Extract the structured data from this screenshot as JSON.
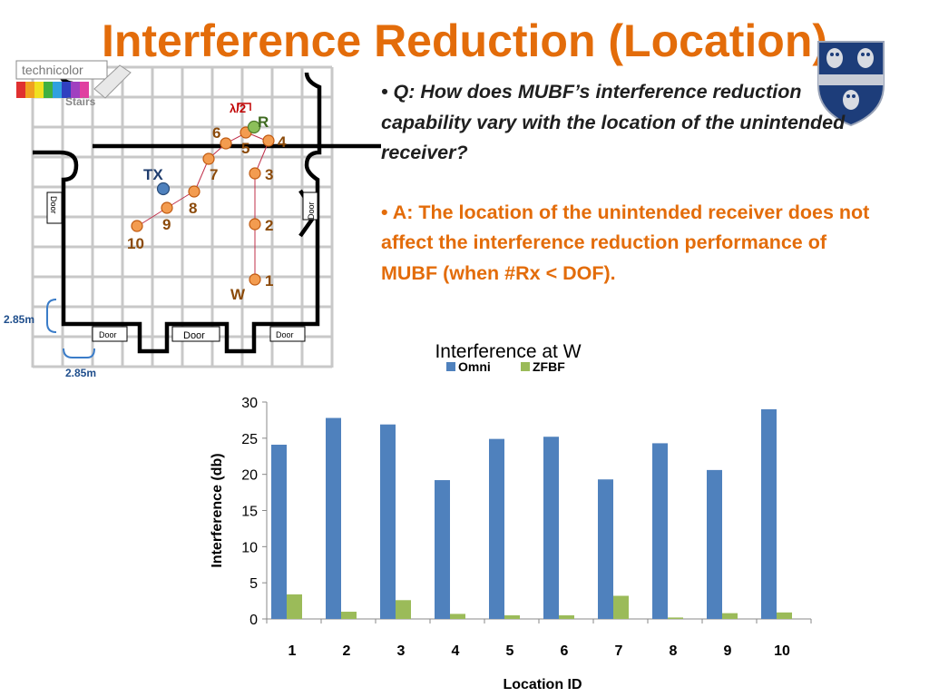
{
  "slide": {
    "title": "Interference Reduction (Location)",
    "question": "• Q: How does MUBF’s interference reduction capability vary with the location of the unintended receiver?",
    "answer": "• A: The location of the unintended receiver does not affect the interference reduction performance of MUBF (when #Rx < DOF).",
    "colors": {
      "title": "#e36c0a",
      "answer": "#e36c0a",
      "question": "#1f1f1f"
    }
  },
  "logo": {
    "text": "technicolor",
    "icon": "technicolor-logo"
  },
  "crest": {
    "icon": "rice-university-crest"
  },
  "floorplan": {
    "stairs_label": "Stairs",
    "door_labels": [
      "Door",
      "Door",
      "Door",
      "Door",
      "Door"
    ],
    "scale_vertical": "2.85m",
    "scale_horizontal": "2.85m",
    "wavelength_label": "λ/2",
    "tx_label": "TX",
    "r_label": "R",
    "w_label": "W",
    "location_labels": [
      "1",
      "2",
      "3",
      "4",
      "5",
      "6",
      "7",
      "8",
      "9",
      "10"
    ]
  },
  "chart_data": {
    "type": "bar",
    "title": "Interference at W",
    "xlabel": "Location ID",
    "ylabel": "Interference (db)",
    "ylim": [
      0,
      30
    ],
    "yticks": [
      0,
      5,
      10,
      15,
      20,
      25,
      30
    ],
    "categories": [
      "1",
      "2",
      "3",
      "4",
      "5",
      "6",
      "7",
      "8",
      "9",
      "10"
    ],
    "series": [
      {
        "name": "Omni",
        "color": "#4f81bd",
        "values": [
          24.1,
          27.8,
          26.9,
          19.2,
          24.9,
          25.2,
          19.3,
          24.3,
          20.6,
          29.0
        ]
      },
      {
        "name": "ZFBF",
        "color": "#9bbb59",
        "values": [
          3.4,
          1.0,
          2.6,
          0.7,
          0.5,
          0.5,
          3.2,
          0.2,
          0.8,
          0.9
        ]
      }
    ],
    "legend_position": "top",
    "grid": false
  }
}
